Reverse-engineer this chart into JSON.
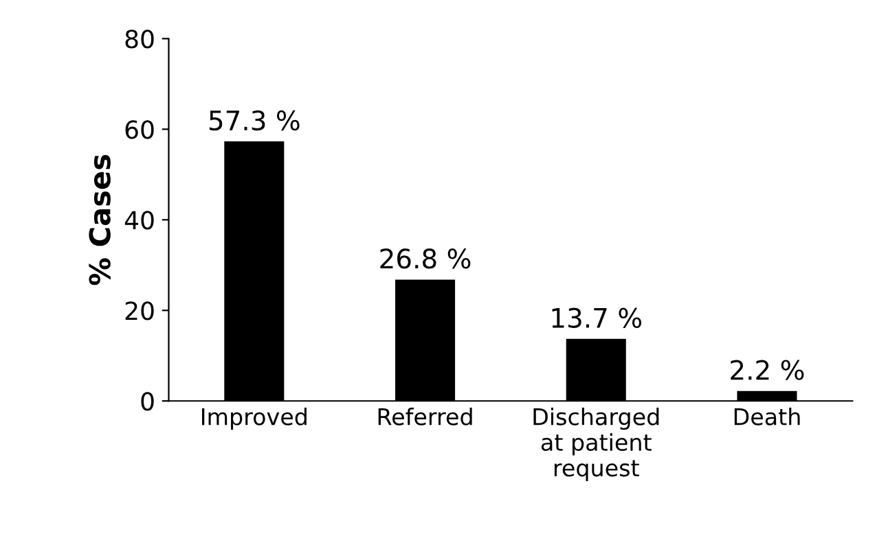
{
  "chart_data": {
    "type": "bar",
    "ylabel": "% Cases",
    "categories": [
      "Improved",
      "Referred",
      "Discharged\nat patient\nrequest",
      "Death"
    ],
    "values": [
      57.3,
      26.8,
      13.7,
      2.2
    ],
    "value_labels": [
      "57.3 %",
      "26.8 %",
      "13.7 %",
      "2.2 %"
    ],
    "color": "#000000",
    "ylim": [
      0,
      80
    ],
    "yticks": [
      0,
      20,
      40,
      60,
      80
    ],
    "grid": false,
    "legend": false
  }
}
